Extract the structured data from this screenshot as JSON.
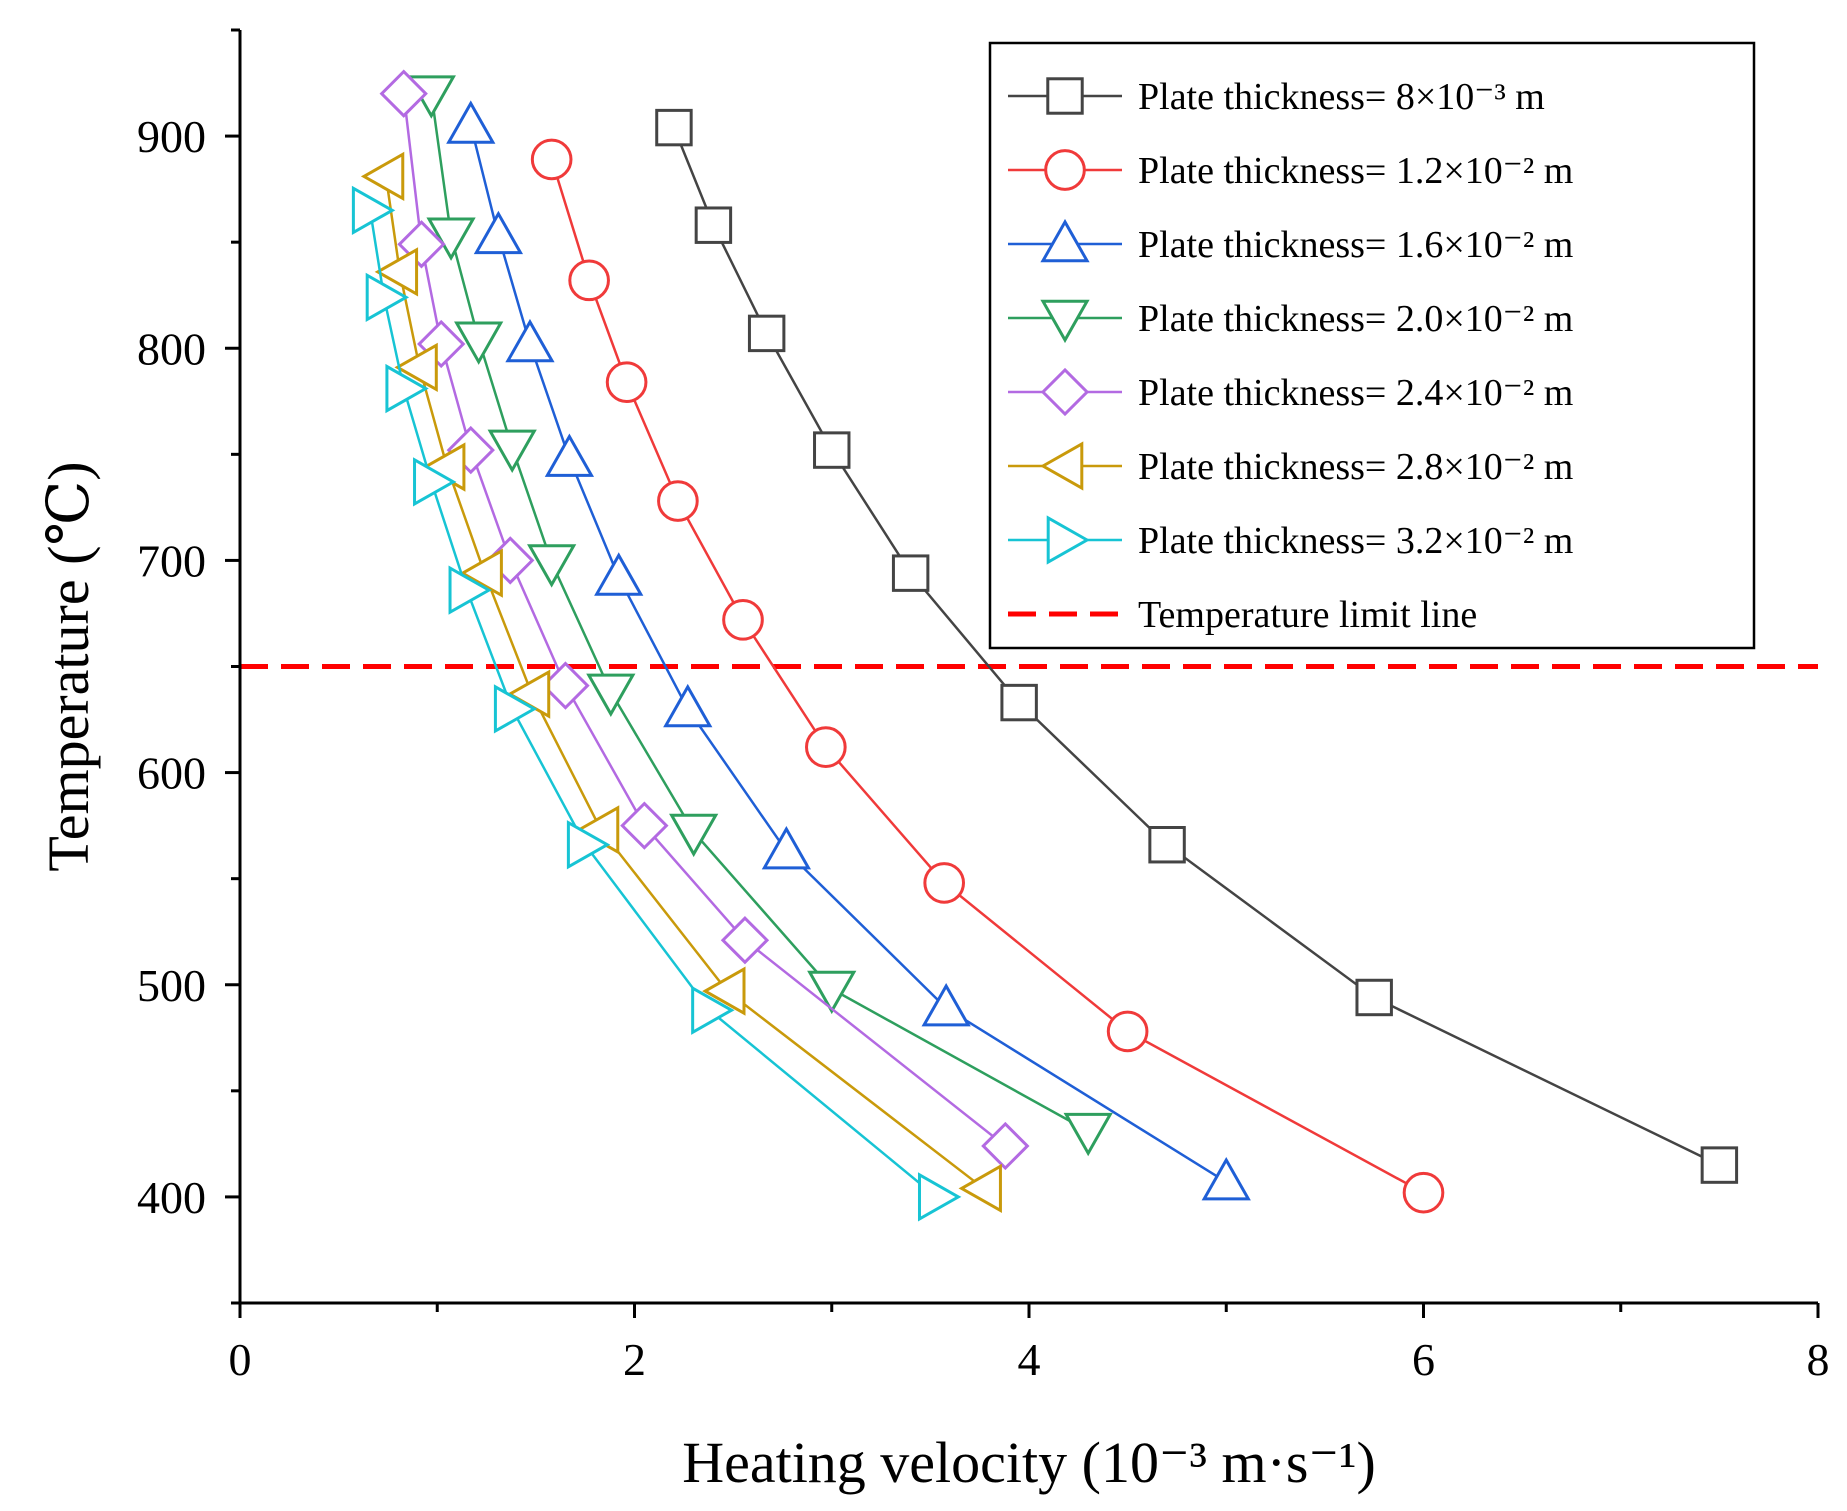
{
  "chart_data": {
    "type": "line",
    "xlabel": "Heating velocity (10⁻³ m·s⁻¹)",
    "ylabel": "Temperature (℃)",
    "xlim": [
      0,
      8
    ],
    "ylim": [
      350,
      950
    ],
    "x_ticks": [
      0,
      2,
      4,
      6,
      8
    ],
    "y_ticks": [
      400,
      500,
      600,
      700,
      800,
      900
    ],
    "legend_position": "top-right",
    "limit_line": {
      "name": "Temperature limit line",
      "value": 650,
      "color": "#ff0000"
    },
    "series": [
      {
        "name": "Plate thickness= 8×10⁻³ m",
        "marker": "square",
        "color": "#444444",
        "x": [
          2.2,
          2.4,
          2.67,
          3.0,
          3.4,
          3.95,
          4.7,
          5.75,
          7.5
        ],
        "y": [
          904,
          858,
          807,
          752,
          694,
          633,
          566,
          494,
          415
        ]
      },
      {
        "name": "Plate thickness= 1.2×10⁻² m",
        "marker": "circle",
        "color": "#f03a3a",
        "x": [
          1.58,
          1.77,
          1.96,
          2.22,
          2.55,
          2.97,
          3.57,
          4.5,
          6.0
        ],
        "y": [
          889,
          832,
          784,
          728,
          672,
          612,
          548,
          478,
          402
        ]
      },
      {
        "name": "Plate thickness= 1.6×10⁻² m",
        "marker": "triangle-up",
        "color": "#1f5fd6",
        "x": [
          1.17,
          1.31,
          1.47,
          1.67,
          1.92,
          2.27,
          2.77,
          3.58,
          5.0
        ],
        "y": [
          905,
          853,
          802,
          748,
          692,
          630,
          563,
          489,
          407
        ]
      },
      {
        "name": "Plate thickness= 2.0×10⁻² m",
        "marker": "triangle-down",
        "color": "#2e9f5e",
        "x": [
          0.97,
          1.07,
          1.21,
          1.38,
          1.58,
          1.88,
          2.3,
          3.0,
          4.3
        ],
        "y": [
          920,
          853,
          804,
          753,
          699,
          638,
          572,
          498,
          431
        ]
      },
      {
        "name": "Plate thickness= 2.4×10⁻² m",
        "marker": "diamond",
        "color": "#b36ae2",
        "x": [
          0.83,
          0.92,
          1.02,
          1.17,
          1.37,
          1.65,
          2.05,
          2.56,
          3.88
        ],
        "y": [
          920,
          849,
          802,
          752,
          700,
          641,
          575,
          521,
          424
        ]
      },
      {
        "name": "Plate thickness= 2.8×10⁻² m",
        "marker": "triangle-left",
        "color": "#c99a0b",
        "x": [
          0.74,
          0.81,
          0.91,
          1.05,
          1.24,
          1.48,
          1.83,
          2.47,
          3.77
        ],
        "y": [
          881,
          836,
          791,
          744,
          694,
          637,
          573,
          497,
          404
        ]
      },
      {
        "name": "Plate thickness= 3.2×10⁻² m",
        "marker": "triangle-right",
        "color": "#17c4d4",
        "x": [
          0.66,
          0.73,
          0.83,
          0.97,
          1.15,
          1.38,
          1.75,
          2.38,
          3.53
        ],
        "y": [
          865,
          824,
          781,
          737,
          686,
          630,
          566,
          488,
          400
        ]
      }
    ]
  }
}
